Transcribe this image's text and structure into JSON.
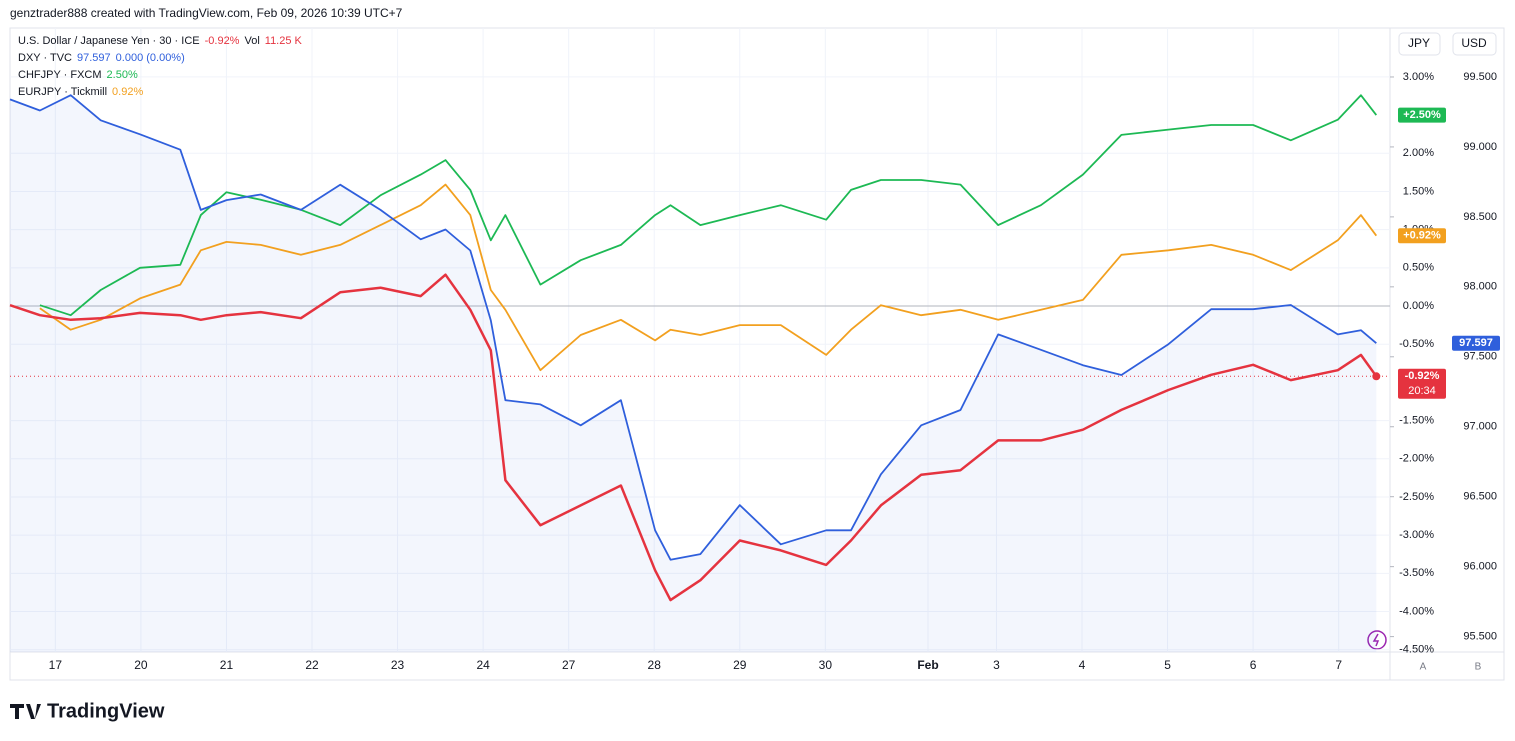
{
  "header": "genztrader888 created with TradingView.com, Feb 09, 2026 10:39 UTC+7",
  "logo": "TradingView",
  "chart_data": {
    "type": "line",
    "x": [
      -0.53,
      -0.18,
      0.18,
      0.53,
      0.99,
      1.46,
      1.7,
      2.0,
      2.4,
      2.87,
      3.33,
      3.8,
      4.27,
      4.56,
      4.85,
      5.09,
      5.26,
      5.67,
      6.14,
      6.61,
      7.01,
      7.19,
      7.54,
      8.0,
      8.48,
      9.01,
      9.3,
      9.65,
      10.12,
      10.58,
      11.02,
      11.52,
      12.01,
      12.46,
      13.01,
      13.51,
      14.0,
      14.44,
      14.99,
      15.26,
      15.44
    ],
    "xlim": [
      -0.53,
      15.6
    ],
    "xticks": [
      {
        "value": 0,
        "label": "17"
      },
      {
        "value": 1,
        "label": "20"
      },
      {
        "value": 2,
        "label": "21"
      },
      {
        "value": 3,
        "label": "22"
      },
      {
        "value": 4,
        "label": "23"
      },
      {
        "value": 5,
        "label": "24"
      },
      {
        "value": 6,
        "label": "27"
      },
      {
        "value": 7,
        "label": "28"
      },
      {
        "value": 8,
        "label": "29"
      },
      {
        "value": 9,
        "label": "30"
      },
      {
        "value": 10.2,
        "label": "Feb"
      },
      {
        "value": 11,
        "label": "3"
      },
      {
        "value": 12,
        "label": "4"
      },
      {
        "value": 13,
        "label": "5"
      },
      {
        "value": 14,
        "label": "6"
      },
      {
        "value": 15,
        "label": "7"
      }
    ],
    "ylim": [
      -4.53,
      3.64
    ],
    "yticks": [
      {
        "value": 3,
        "label": "3.00%"
      },
      {
        "value": 2,
        "label": "2.00%"
      },
      {
        "value": 1.5,
        "label": "1.50%"
      },
      {
        "value": 1,
        "label": "1.00%"
      },
      {
        "value": 0.5,
        "label": "0.50%"
      },
      {
        "value": 0,
        "label": "0.00%"
      },
      {
        "value": -0.5,
        "label": "-0.50%"
      },
      {
        "value": -1.5,
        "label": "-1.50%"
      },
      {
        "value": -2,
        "label": "-2.00%"
      },
      {
        "value": -2.5,
        "label": "-2.50%"
      },
      {
        "value": -3,
        "label": "-3.00%"
      },
      {
        "value": -3.5,
        "label": "-3.50%"
      },
      {
        "value": -4,
        "label": "-4.00%"
      },
      {
        "value": -4.5,
        "label": "-4.50%"
      }
    ],
    "y2lim": [
      95.39,
      99.85
    ],
    "y2ticks": [
      {
        "value": 99.5,
        "label": "99.500"
      },
      {
        "value": 99,
        "label": "99.000"
      },
      {
        "value": 98.5,
        "label": "98.500"
      },
      {
        "value": 98,
        "label": "98.000"
      },
      {
        "value": 97.5,
        "label": "97.500"
      },
      {
        "value": 97,
        "label": "97.000"
      },
      {
        "value": 96.5,
        "label": "96.500"
      },
      {
        "value": 96,
        "label": "96.000"
      },
      {
        "value": 95.5,
        "label": "95.500"
      }
    ],
    "axis_buttons": [
      "JPY",
      "USD"
    ],
    "scale_labels": [
      "A",
      "B"
    ],
    "grid": true,
    "series": [
      {
        "name": "U.S. Dollar / Japanese Yen · 30 · ICE",
        "color": "#e5333f",
        "legend_value": "-0.92%",
        "volume_label": "Vol",
        "volume": "11.25 K",
        "last_label": "-0.92%",
        "countdown": "20:34",
        "values": [
          0.01,
          -0.12,
          -0.18,
          -0.16,
          -0.09,
          -0.12,
          -0.18,
          -0.12,
          -0.08,
          -0.16,
          0.18,
          0.24,
          0.13,
          0.41,
          -0.05,
          -0.58,
          -2.28,
          -2.87,
          -2.61,
          -2.35,
          -3.46,
          -3.85,
          -3.59,
          -3.07,
          -3.2,
          -3.39,
          -3.07,
          -2.61,
          -2.21,
          -2.15,
          -1.76,
          -1.76,
          -1.62,
          -1.36,
          -1.1,
          -0.9,
          -0.77,
          -0.97,
          -0.84,
          -0.64,
          -0.92
        ]
      },
      {
        "name": "DXY · TVC",
        "color": "#2f5fdc",
        "axis": "y2",
        "area": true,
        "legend_value": "97.597",
        "legend_change": "0.000 (0.00%)",
        "last_label": "97.597",
        "values": [
          99.34,
          99.26,
          99.37,
          99.19,
          99.09,
          98.98,
          98.55,
          98.62,
          98.66,
          98.55,
          98.73,
          98.55,
          98.34,
          98.41,
          98.26,
          97.76,
          97.19,
          97.16,
          97.01,
          97.19,
          96.26,
          96.05,
          96.09,
          96.44,
          96.16,
          96.26,
          96.26,
          96.66,
          97.01,
          97.12,
          97.66,
          97.55,
          97.44,
          97.37,
          97.59,
          97.84,
          97.84,
          97.87,
          97.66,
          97.69,
          97.597
        ]
      },
      {
        "name": "CHFJPY · FXCM",
        "color": "#1db954",
        "legend_value": "2.50%",
        "last_label": "+2.50%",
        "values": [
          null,
          0.01,
          -0.12,
          0.21,
          0.5,
          0.54,
          1.19,
          1.49,
          1.39,
          1.26,
          1.06,
          1.45,
          1.72,
          1.91,
          1.52,
          0.86,
          1.19,
          0.28,
          0.6,
          0.8,
          1.19,
          1.32,
          1.06,
          1.19,
          1.32,
          1.13,
          1.52,
          1.65,
          1.65,
          1.59,
          1.06,
          1.32,
          1.72,
          2.24,
          2.31,
          2.37,
          2.37,
          2.17,
          2.44,
          2.76,
          2.5
        ]
      },
      {
        "name": "EURJPY · Tickmill",
        "color": "#f2a01f",
        "legend_value": "0.92%",
        "last_label": "+0.92%",
        "values": [
          null,
          -0.03,
          -0.31,
          -0.18,
          0.1,
          0.28,
          0.73,
          0.84,
          0.8,
          0.67,
          0.8,
          1.06,
          1.32,
          1.59,
          1.19,
          0.21,
          -0.05,
          -0.84,
          -0.38,
          -0.18,
          -0.45,
          -0.31,
          -0.38,
          -0.25,
          -0.25,
          -0.64,
          -0.31,
          0.01,
          -0.12,
          -0.05,
          -0.18,
          -0.05,
          0.08,
          0.67,
          0.73,
          0.8,
          0.67,
          0.47,
          0.86,
          1.19,
          0.92
        ]
      }
    ]
  }
}
